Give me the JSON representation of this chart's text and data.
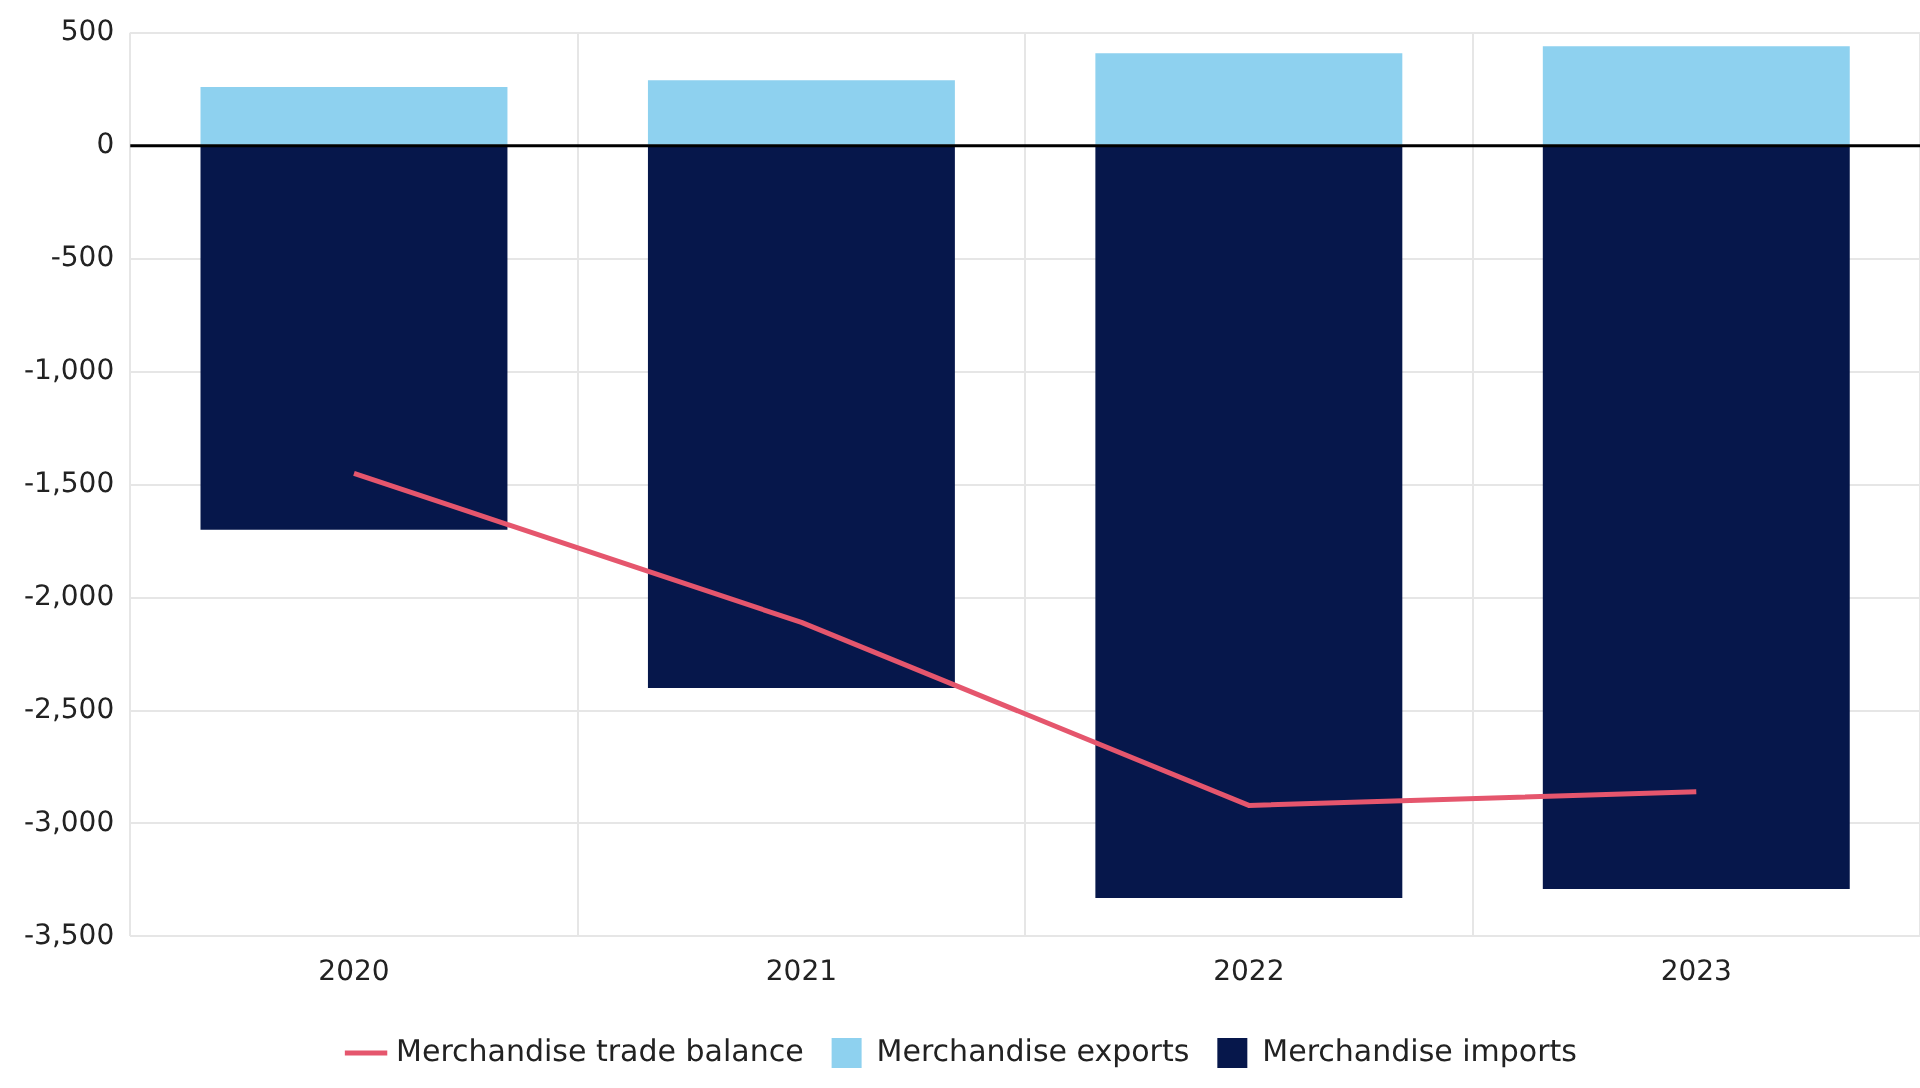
{
  "chart_data": {
    "type": "bar",
    "categories": [
      "2020",
      "2021",
      "2022",
      "2023"
    ],
    "series": [
      {
        "name": "Merchandise trade balance",
        "type": "line",
        "color": "#e5566d",
        "values": [
          -1450,
          -2110,
          -2920,
          -2860
        ]
      },
      {
        "name": "Merchandise exports",
        "color": "#8ed1ef",
        "values": [
          260,
          290,
          410,
          440
        ]
      },
      {
        "name": "Merchandise imports",
        "color": "#06174b",
        "values": [
          -1700,
          -2400,
          -3330,
          -3290
        ]
      }
    ],
    "stacked": true,
    "ylim": [
      -3500,
      500
    ],
    "yticks": [
      {
        "value": 500,
        "label": "500"
      },
      {
        "value": 0,
        "label": "0"
      },
      {
        "value": -500,
        "label": "-500"
      },
      {
        "value": -1000,
        "label": "-1,000"
      },
      {
        "value": -1500,
        "label": "-1,500"
      },
      {
        "value": -2000,
        "label": "-2,000"
      },
      {
        "value": -2500,
        "label": "-2,500"
      },
      {
        "value": -3000,
        "label": "-3,000"
      },
      {
        "value": -3500,
        "label": "-3,500"
      }
    ],
    "ref_lines": [
      {
        "axis": "y",
        "value": 0,
        "color": "#000000"
      }
    ],
    "grid": true,
    "legend": "bottom"
  }
}
